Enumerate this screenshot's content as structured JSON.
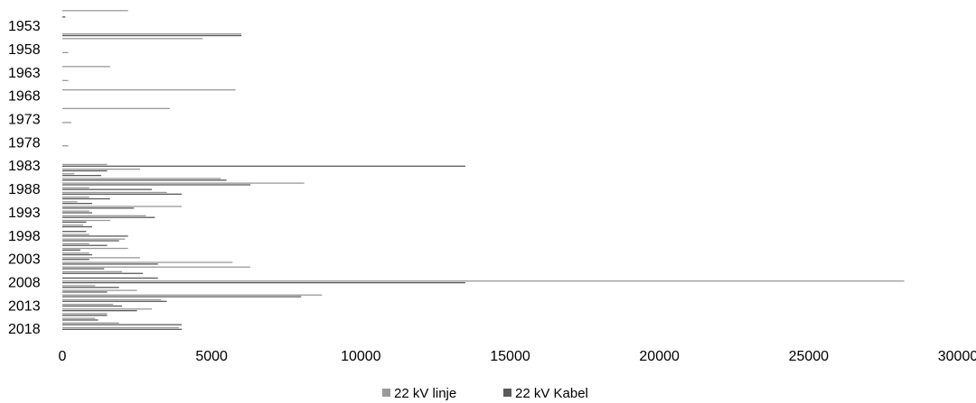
{
  "chart_data": {
    "type": "bar",
    "orientation": "horizontal",
    "stacked": false,
    "categories": [
      "1950",
      "1951",
      "1952",
      "1953",
      "1954",
      "1955",
      "1956",
      "1957",
      "1958",
      "1959",
      "1960",
      "1961",
      "1962",
      "1963",
      "1964",
      "1965",
      "1966",
      "1967",
      "1968",
      "1969",
      "1970",
      "1971",
      "1972",
      "1973",
      "1974",
      "1975",
      "1976",
      "1977",
      "1978",
      "1979",
      "1980",
      "1981",
      "1982",
      "1983",
      "1984",
      "1985",
      "1986",
      "1987",
      "1988",
      "1989",
      "1990",
      "1991",
      "1992",
      "1993",
      "1994",
      "1995",
      "1996",
      "1997",
      "1998",
      "1999",
      "2000",
      "2001",
      "2002",
      "2003",
      "2004",
      "2005",
      "2006",
      "2007",
      "2008",
      "2009",
      "2010",
      "2011",
      "2012",
      "2013",
      "2014",
      "2015",
      "2016",
      "2017",
      "2018",
      "2019"
    ],
    "ytick_labels": [
      "1953",
      "1958",
      "1963",
      "1968",
      "1973",
      "1978",
      "1983",
      "1988",
      "1993",
      "1998",
      "2003",
      "2008",
      "2013",
      "2018"
    ],
    "xtick_labels": [
      "0",
      "5000",
      "10000",
      "15000",
      "20000",
      "25000",
      "30000"
    ],
    "xlim": [
      0,
      30000
    ],
    "series": [
      {
        "name": "22 kV linje",
        "color": "#9a9a9a",
        "values": [
          2200,
          0,
          0,
          0,
          0,
          6000,
          4700,
          0,
          0,
          200,
          0,
          0,
          1600,
          0,
          0,
          200,
          0,
          5800,
          0,
          0,
          0,
          3600,
          0,
          0,
          300,
          0,
          0,
          0,
          0,
          200,
          0,
          0,
          0,
          1500,
          2600,
          400,
          5300,
          8100,
          900,
          3500,
          900,
          500,
          4000,
          900,
          2800,
          1600,
          700,
          0,
          900,
          2100,
          900,
          2200,
          900,
          2600,
          5700,
          6300,
          2000,
          0,
          28200,
          1100,
          2500,
          8700,
          3300,
          1700,
          3000,
          1500,
          1100,
          1900,
          3900,
          0
        ]
      },
      {
        "name": "22 kV Kabel",
        "color": "#5a5a5a",
        "values": [
          0,
          100,
          0,
          0,
          0,
          6000,
          0,
          0,
          0,
          0,
          0,
          0,
          0,
          0,
          0,
          0,
          0,
          0,
          0,
          0,
          0,
          0,
          0,
          0,
          0,
          0,
          0,
          0,
          0,
          0,
          0,
          0,
          0,
          13500,
          1500,
          1300,
          5500,
          6300,
          3000,
          4000,
          1600,
          1000,
          2400,
          1000,
          3100,
          800,
          1000,
          800,
          2200,
          1900,
          1500,
          600,
          1000,
          900,
          3200,
          1400,
          2700,
          3200,
          13500,
          1900,
          1500,
          8000,
          3500,
          2000,
          2500,
          1500,
          1200,
          4000,
          4000,
          0
        ]
      }
    ],
    "legend_position": "bottom",
    "grid": false,
    "title": "",
    "xlabel": "",
    "ylabel": ""
  }
}
